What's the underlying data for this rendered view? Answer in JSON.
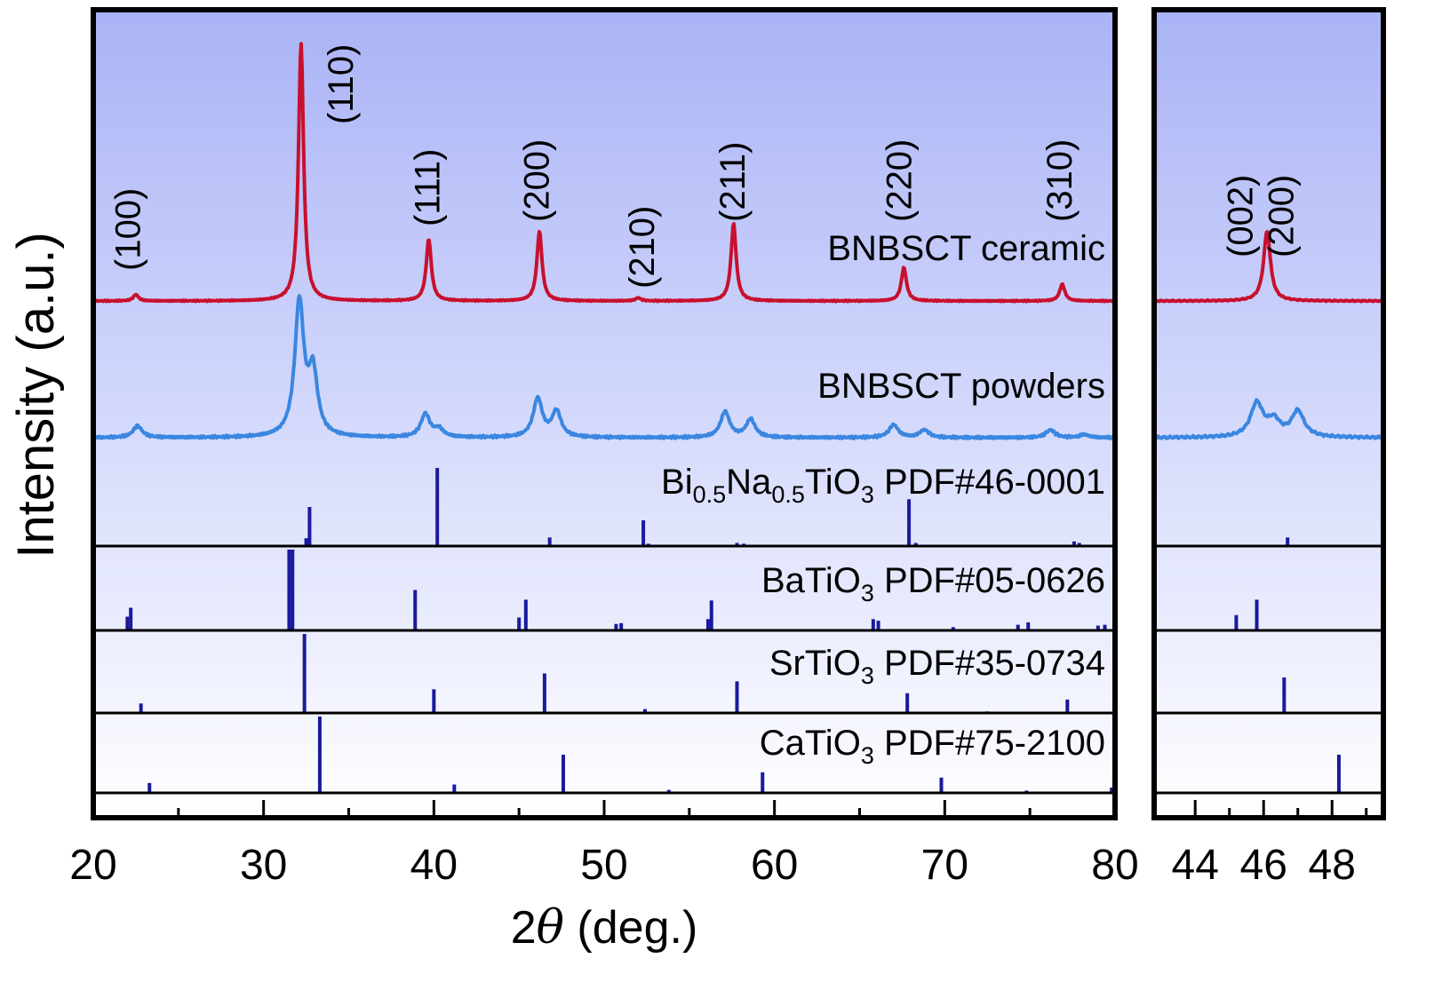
{
  "chart_data": [
    {
      "type": "line",
      "xlabel_prefix": "2",
      "xlabel_symbol": "θ",
      "xlabel_suffix": " (deg.)",
      "ylabel": "Intensity (a.u.)",
      "xlim": [
        20,
        80
      ],
      "xticks": [
        "20",
        "30",
        "40",
        "50",
        "60",
        "70",
        "80"
      ],
      "peak_labels": [
        {
          "text": "(100)",
          "x": 22.0
        },
        {
          "text": "(110)",
          "x": 34.5
        },
        {
          "text": "(111)",
          "x": 39.6
        },
        {
          "text": "(200)",
          "x": 46.0
        },
        {
          "text": "(210)",
          "x": 52.2
        },
        {
          "text": "(211)",
          "x": 57.5
        },
        {
          "text": "(220)",
          "x": 67.3
        },
        {
          "text": "(310)",
          "x": 76.7
        }
      ],
      "series": [
        {
          "name": "BNBSCT ceramic",
          "color": "#c8102e",
          "peaks": [
            {
              "x": 22.5,
              "h": 0.025
            },
            {
              "x": 32.2,
              "h": 1.0
            },
            {
              "x": 39.7,
              "h": 0.24
            },
            {
              "x": 46.2,
              "h": 0.27
            },
            {
              "x": 52.0,
              "h": 0.012
            },
            {
              "x": 57.6,
              "h": 0.3
            },
            {
              "x": 67.6,
              "h": 0.13
            },
            {
              "x": 76.9,
              "h": 0.065
            }
          ]
        },
        {
          "name": "BNBSCT powders",
          "color": "#3a86e0",
          "peaks": [
            {
              "x": 22.6,
              "h": 0.045
            },
            {
              "x": 32.1,
              "h": 0.52
            },
            {
              "x": 32.9,
              "h": 0.24
            },
            {
              "x": 39.5,
              "h": 0.09
            },
            {
              "x": 40.3,
              "h": 0.03
            },
            {
              "x": 46.1,
              "h": 0.15
            },
            {
              "x": 47.2,
              "h": 0.1
            },
            {
              "x": 57.1,
              "h": 0.1
            },
            {
              "x": 58.6,
              "h": 0.07
            },
            {
              "x": 67.0,
              "h": 0.05
            },
            {
              "x": 68.8,
              "h": 0.03
            },
            {
              "x": 76.2,
              "h": 0.03
            },
            {
              "x": 78.2,
              "h": 0.012
            }
          ]
        }
      ]
    },
    {
      "type": "bar",
      "reference_patterns": [
        {
          "name_parts": [
            "Bi",
            "0.5",
            "Na",
            "0.5",
            "TiO",
            "3",
            " PDF#46-0001"
          ],
          "sticks": [
            [
              32.5,
              0.1
            ],
            [
              32.7,
              0.5
            ],
            [
              40.2,
              1.0
            ],
            [
              46.8,
              0.11
            ],
            [
              52.3,
              0.33
            ],
            [
              52.6,
              0.03
            ],
            [
              57.8,
              0.04
            ],
            [
              58.2,
              0.03
            ],
            [
              67.9,
              0.6
            ],
            [
              68.3,
              0.04
            ],
            [
              77.6,
              0.06
            ],
            [
              77.9,
              0.04
            ]
          ]
        },
        {
          "name_parts": [
            "BaTiO",
            "3",
            " PDF#05-0626"
          ],
          "sticks": [
            [
              22.0,
              0.17
            ],
            [
              22.2,
              0.28
            ],
            [
              31.5,
              1.0
            ],
            [
              31.7,
              1.0
            ],
            [
              38.9,
              0.5
            ],
            [
              45.0,
              0.16
            ],
            [
              45.4,
              0.38
            ],
            [
              50.7,
              0.08
            ],
            [
              51.0,
              0.09
            ],
            [
              56.1,
              0.14
            ],
            [
              56.3,
              0.37
            ],
            [
              65.8,
              0.14
            ],
            [
              66.1,
              0.12
            ],
            [
              70.5,
              0.04
            ],
            [
              74.3,
              0.07
            ],
            [
              74.9,
              0.1
            ],
            [
              79.0,
              0.06
            ],
            [
              79.4,
              0.07
            ]
          ]
        },
        {
          "name_parts": [
            "SrTiO",
            "3",
            " PDF#35-0734"
          ],
          "sticks": [
            [
              22.8,
              0.12
            ],
            [
              32.4,
              1.0
            ],
            [
              40.0,
              0.3
            ],
            [
              46.5,
              0.5
            ],
            [
              52.4,
              0.05
            ],
            [
              57.8,
              0.4
            ],
            [
              67.8,
              0.25
            ],
            [
              72.5,
              0.02
            ],
            [
              77.2,
              0.17
            ]
          ]
        },
        {
          "name_parts": [
            "CaTiO",
            "3",
            " PDF#75-2100"
          ],
          "sticks": [
            [
              23.3,
              0.13
            ],
            [
              33.3,
              1.0
            ],
            [
              41.2,
              0.11
            ],
            [
              47.6,
              0.5
            ],
            [
              53.8,
              0.04
            ],
            [
              59.3,
              0.27
            ],
            [
              69.8,
              0.2
            ],
            [
              74.8,
              0.03
            ],
            [
              79.8,
              0.07
            ]
          ]
        }
      ]
    },
    {
      "type": "line",
      "xlim": [
        42.8,
        49.5
      ],
      "xticks": [
        "44",
        "46",
        "48"
      ],
      "peak_labels": [
        {
          "text": "(002)",
          "x": 45.3
        },
        {
          "text": "(200)",
          "x": 46.5
        }
      ],
      "series": [
        {
          "name": "BNBSCT ceramic",
          "color": "#c8102e",
          "peaks": [
            {
              "x": 46.1,
              "h": 0.27
            }
          ]
        },
        {
          "name": "BNBSCT powders",
          "color": "#3a86e0",
          "peaks": [
            {
              "x": 45.8,
              "h": 0.13
            },
            {
              "x": 46.3,
              "h": 0.06
            },
            {
              "x": 47.0,
              "h": 0.1
            }
          ]
        }
      ],
      "reference_sticks": [
        [
          [
            46.7,
            0.11
          ]
        ],
        [
          [
            45.2,
            0.19
          ],
          [
            45.8,
            0.38
          ]
        ],
        [
          [
            46.6,
            0.45
          ]
        ],
        [
          [
            48.2,
            0.5
          ]
        ]
      ]
    }
  ]
}
